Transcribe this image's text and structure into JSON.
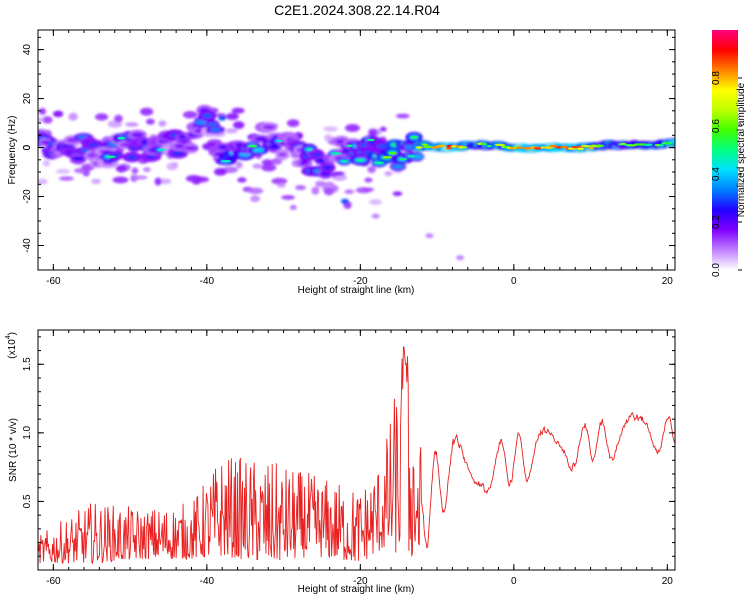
{
  "title": "C2E1.2024.308.22.14.R04",
  "chart_data": [
    {
      "type": "heatmap",
      "xlabel": "Height of straight line (km)",
      "ylabel": "Frequency (Hz)",
      "xlim": [
        -62,
        21
      ],
      "ylim": [
        -50,
        48
      ],
      "x_ticks": [
        -60,
        -40,
        -20,
        0,
        20
      ],
      "y_ticks": [
        -40,
        -20,
        0,
        20,
        40
      ],
      "colorbar": {
        "label": "Normalized spectral amplitude",
        "range": [
          0,
          1
        ],
        "ticks": [
          "0.0",
          "0.2",
          "0.4",
          "0.6",
          "0.8"
        ],
        "colors": [
          "#ffffff",
          "#c080ff",
          "#8000ff",
          "#2000ff",
          "#0080ff",
          "#00e0ff",
          "#00ff80",
          "#40ff00",
          "#c0ff00",
          "#ffff00",
          "#ff8000",
          "#ff0000",
          "#ff0080"
        ]
      },
      "ridge": [
        {
          "x": -62,
          "y": 2,
          "a": 0.35
        },
        {
          "x": -58,
          "y": 1,
          "a": 0.3
        },
        {
          "x": -54,
          "y": -2,
          "a": 0.3
        },
        {
          "x": -50,
          "y": 0,
          "a": 0.35
        },
        {
          "x": -46,
          "y": 2,
          "a": 0.3
        },
        {
          "x": -42,
          "y": 1,
          "a": 0.35
        },
        {
          "x": -40,
          "y": 13,
          "a": 0.25
        },
        {
          "x": -38,
          "y": -3,
          "a": 0.3
        },
        {
          "x": -35,
          "y": 2,
          "a": 0.45
        },
        {
          "x": -32,
          "y": 4,
          "a": 0.3
        },
        {
          "x": -28,
          "y": -1,
          "a": 0.35
        },
        {
          "x": -25,
          "y": -8,
          "a": 0.25
        },
        {
          "x": -22,
          "y": -1,
          "a": 0.35
        },
        {
          "x": -18,
          "y": -2,
          "a": 0.5
        },
        {
          "x": -15,
          "y": -3,
          "a": 0.55
        },
        {
          "x": -12,
          "y": 1,
          "a": 0.6
        },
        {
          "x": -9,
          "y": 0,
          "a": 0.85
        },
        {
          "x": -5,
          "y": 1,
          "a": 0.65
        },
        {
          "x": -2,
          "y": 1,
          "a": 0.6
        },
        {
          "x": 0,
          "y": 0,
          "a": 0.7
        },
        {
          "x": 3,
          "y": 0,
          "a": 0.85
        },
        {
          "x": 6,
          "y": 0,
          "a": 0.8
        },
        {
          "x": 9,
          "y": 0,
          "a": 0.8
        },
        {
          "x": 12,
          "y": 1,
          "a": 0.55
        },
        {
          "x": 15,
          "y": 1,
          "a": 0.5
        },
        {
          "x": 18,
          "y": 1,
          "a": 0.6
        },
        {
          "x": 21,
          "y": 2,
          "a": 0.55
        }
      ]
    },
    {
      "type": "line",
      "xlabel": "Height of straight line (km)",
      "ylabel": "SNR (10 * v/v)",
      "yscale_label": "(x10",
      "yscale_exp": "4",
      "xlim": [
        -62,
        21
      ],
      "ylim": [
        0,
        1.75
      ],
      "x_ticks": [
        -60,
        -40,
        -20,
        0,
        20
      ],
      "y_ticks": [
        "0.5",
        "1.0",
        "1.5"
      ],
      "line_color": "#e82020",
      "envelope": [
        {
          "x": -62,
          "lo": 0.05,
          "hi": 0.25
        },
        {
          "x": -55,
          "lo": 0.05,
          "hi": 0.5
        },
        {
          "x": -48,
          "lo": 0.08,
          "hi": 0.45
        },
        {
          "x": -42,
          "lo": 0.08,
          "hi": 0.5
        },
        {
          "x": -38,
          "lo": 0.1,
          "hi": 0.85
        },
        {
          "x": -32,
          "lo": 0.05,
          "hi": 0.8
        },
        {
          "x": -26,
          "lo": 0.1,
          "hi": 0.7
        },
        {
          "x": -20,
          "lo": 0.05,
          "hi": 0.6
        },
        {
          "x": -17,
          "lo": 0.15,
          "hi": 0.85
        },
        {
          "x": -14.2,
          "lo": 0.1,
          "hi": 1.7
        },
        {
          "x": -12,
          "lo": 0.05,
          "hi": 0.9
        },
        {
          "x": -8,
          "lo": 0.5,
          "hi": 1.0
        },
        {
          "x": -2,
          "lo": 0.55,
          "hi": 1.0
        },
        {
          "x": 3,
          "lo": 0.65,
          "hi": 1.05
        },
        {
          "x": 9,
          "lo": 0.75,
          "hi": 1.1
        },
        {
          "x": 15,
          "lo": 0.8,
          "hi": 1.15
        },
        {
          "x": 21,
          "lo": 0.85,
          "hi": 1.15
        }
      ]
    }
  ]
}
